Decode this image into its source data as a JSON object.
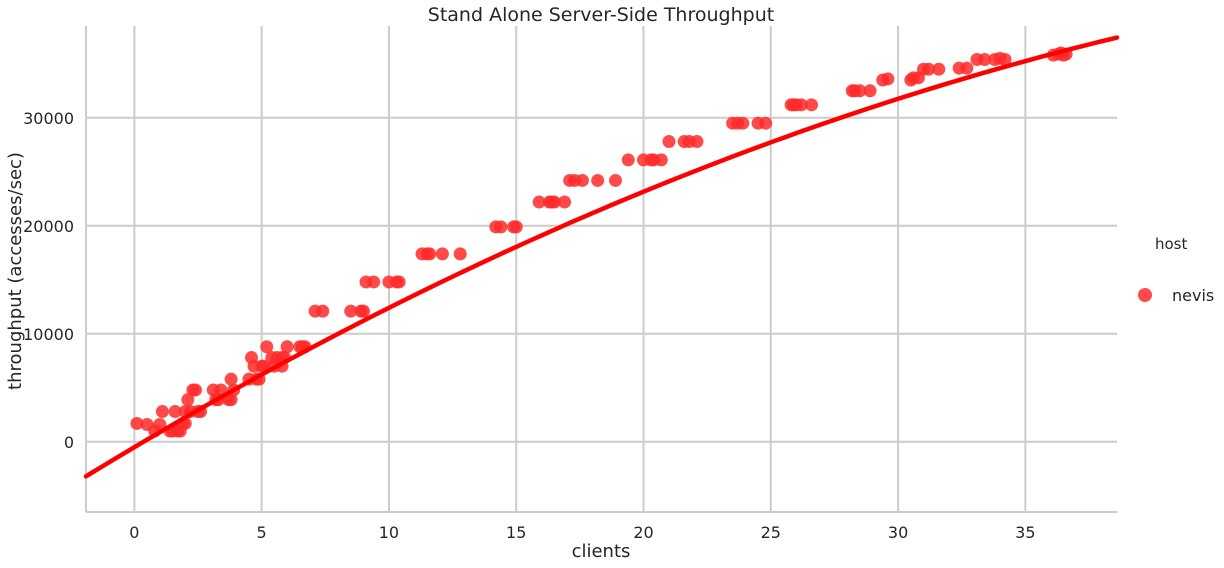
{
  "chart_data": {
    "type": "scatter",
    "title": "Stand Alone Server-Side Throughput",
    "xlabel": "clients",
    "ylabel": "throughput (accesses/sec)",
    "xlim": [
      -1.9,
      38.6
    ],
    "ylim": [
      -6500,
      38500
    ],
    "xticks": [
      0,
      5,
      10,
      15,
      20,
      25,
      30,
      35
    ],
    "yticks": [
      0,
      10000,
      20000,
      30000
    ],
    "grid": true,
    "legend": {
      "title": "host",
      "entries": [
        "nevis"
      ],
      "placement": "right"
    },
    "colors": {
      "points": "#ff2a2a",
      "fit_line": "#ff0000",
      "grid": "#cccccc",
      "text": "#262626"
    },
    "series": [
      {
        "name": "nevis",
        "points": [
          [
            0.1,
            1700
          ],
          [
            0.5,
            1600
          ],
          [
            0.8,
            1000
          ],
          [
            1.0,
            1600
          ],
          [
            1.1,
            2800
          ],
          [
            1.4,
            1000
          ],
          [
            1.5,
            1000
          ],
          [
            1.6,
            2800
          ],
          [
            1.7,
            1000
          ],
          [
            1.8,
            1000
          ],
          [
            1.9,
            1700
          ],
          [
            2.0,
            1700
          ],
          [
            2.0,
            2800
          ],
          [
            2.1,
            3900
          ],
          [
            2.2,
            2800
          ],
          [
            2.3,
            4800
          ],
          [
            2.4,
            4800
          ],
          [
            2.5,
            2800
          ],
          [
            2.6,
            2800
          ],
          [
            3.1,
            4800
          ],
          [
            3.2,
            3900
          ],
          [
            3.3,
            3900
          ],
          [
            3.4,
            4800
          ],
          [
            3.7,
            3900
          ],
          [
            3.8,
            3900
          ],
          [
            3.8,
            5800
          ],
          [
            3.9,
            4800
          ],
          [
            4.5,
            5800
          ],
          [
            4.6,
            7800
          ],
          [
            4.7,
            7000
          ],
          [
            4.8,
            5800
          ],
          [
            4.9,
            5800
          ],
          [
            5.0,
            7000
          ],
          [
            5.1,
            7000
          ],
          [
            5.2,
            8800
          ],
          [
            5.4,
            7800
          ],
          [
            5.5,
            7000
          ],
          [
            5.6,
            7800
          ],
          [
            5.8,
            7800
          ],
          [
            5.8,
            7000
          ],
          [
            5.9,
            7800
          ],
          [
            6.0,
            8800
          ],
          [
            6.5,
            8800
          ],
          [
            6.6,
            8800
          ],
          [
            6.7,
            8800
          ],
          [
            7.1,
            12100
          ],
          [
            7.4,
            12100
          ],
          [
            8.5,
            12100
          ],
          [
            8.9,
            12100
          ],
          [
            9.0,
            12100
          ],
          [
            9.1,
            14800
          ],
          [
            9.4,
            14800
          ],
          [
            10.0,
            14800
          ],
          [
            10.3,
            14800
          ],
          [
            10.4,
            14800
          ],
          [
            11.3,
            17400
          ],
          [
            11.5,
            17400
          ],
          [
            11.6,
            17400
          ],
          [
            12.1,
            17400
          ],
          [
            12.8,
            17400
          ],
          [
            14.2,
            19900
          ],
          [
            14.4,
            19900
          ],
          [
            14.9,
            19900
          ],
          [
            15.0,
            19900
          ],
          [
            15.9,
            22200
          ],
          [
            16.3,
            22200
          ],
          [
            16.4,
            22200
          ],
          [
            16.5,
            22200
          ],
          [
            16.9,
            22200
          ],
          [
            17.1,
            24200
          ],
          [
            17.3,
            24200
          ],
          [
            17.6,
            24200
          ],
          [
            18.2,
            24200
          ],
          [
            18.9,
            24200
          ],
          [
            19.4,
            26100
          ],
          [
            20.0,
            26100
          ],
          [
            20.3,
            26100
          ],
          [
            20.4,
            26100
          ],
          [
            20.7,
            26100
          ],
          [
            21.0,
            27800
          ],
          [
            21.6,
            27800
          ],
          [
            21.8,
            27800
          ],
          [
            22.1,
            27800
          ],
          [
            23.5,
            29500
          ],
          [
            23.7,
            29500
          ],
          [
            23.9,
            29500
          ],
          [
            24.5,
            29500
          ],
          [
            24.8,
            29500
          ],
          [
            25.8,
            31200
          ],
          [
            25.9,
            31200
          ],
          [
            26.0,
            31200
          ],
          [
            26.2,
            31200
          ],
          [
            26.6,
            31200
          ],
          [
            28.2,
            32500
          ],
          [
            28.3,
            32500
          ],
          [
            28.5,
            32500
          ],
          [
            28.9,
            32500
          ],
          [
            29.4,
            33500
          ],
          [
            29.6,
            33600
          ],
          [
            30.5,
            33500
          ],
          [
            30.6,
            33700
          ],
          [
            30.8,
            33700
          ],
          [
            31.0,
            34500
          ],
          [
            31.2,
            34500
          ],
          [
            31.6,
            34500
          ],
          [
            32.4,
            34600
          ],
          [
            32.7,
            34600
          ],
          [
            33.1,
            35400
          ],
          [
            33.4,
            35400
          ],
          [
            33.8,
            35400
          ],
          [
            34.0,
            35500
          ],
          [
            34.2,
            35400
          ],
          [
            36.1,
            35800
          ],
          [
            36.3,
            35900
          ],
          [
            36.4,
            36000
          ],
          [
            36.5,
            35800
          ],
          [
            36.6,
            35900
          ]
        ]
      }
    ],
    "fit": {
      "type": "quadratic",
      "coefficients": {
        "a": -10.76,
        "b": 1398,
        "c": -500
      },
      "x_range": [
        -1.9,
        38.6
      ]
    }
  }
}
